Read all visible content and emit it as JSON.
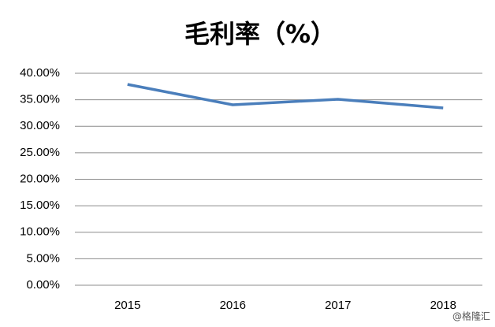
{
  "chart_data": {
    "type": "line",
    "title": "毛利率（%）",
    "categories": [
      "2015",
      "2016",
      "2017",
      "2018"
    ],
    "series": [
      {
        "name": "毛利率",
        "color": "#4a7ebb",
        "values": [
          37.9,
          34.05,
          35.1,
          33.45
        ]
      }
    ],
    "ylim": [
      0,
      40
    ],
    "yticks": [
      {
        "value": 0,
        "label": "0.00%"
      },
      {
        "value": 5,
        "label": "5.00%"
      },
      {
        "value": 10,
        "label": "10.00%"
      },
      {
        "value": 15,
        "label": "15.00%"
      },
      {
        "value": 20,
        "label": "20.00%"
      },
      {
        "value": 25,
        "label": "25.00%"
      },
      {
        "value": 30,
        "label": "30.00%"
      },
      {
        "value": 35,
        "label": "35.00%"
      },
      {
        "value": 40,
        "label": "40.00%"
      }
    ],
    "grid": true,
    "watermark": "@格隆汇"
  }
}
